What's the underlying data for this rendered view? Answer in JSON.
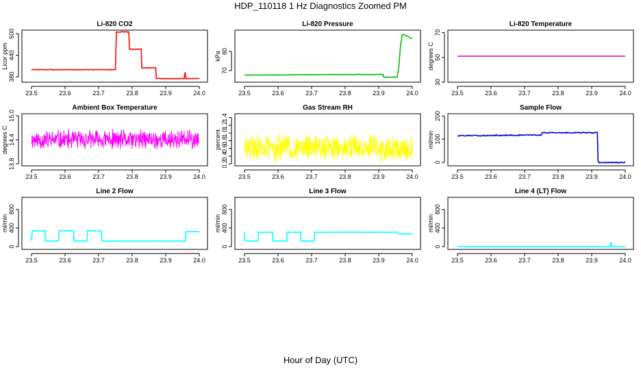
{
  "figure_title": "HDP_110118  1 Hz Diagnostics Zoomed PM",
  "x_axis_label": "Hour of Day (UTC)",
  "chart_data": [
    {
      "type": "line",
      "title": "Li-820 CO2",
      "ylabel": "Licor ppm",
      "color": "#ff0000",
      "xlim": [
        23.5,
        24.0
      ],
      "ylim": [
        365,
        510
      ],
      "x_ticks": [
        23.5,
        23.6,
        23.7,
        23.8,
        23.9,
        24.0
      ],
      "x_tick_labels": [
        "23.5",
        "23.6",
        "23.7",
        "23.8",
        "23.9",
        "24.0"
      ],
      "y_ticks": [
        380,
        440,
        500
      ],
      "y_tick_labels": [
        "380",
        "440",
        "500"
      ],
      "kind": "step",
      "noise": 0.8,
      "series": [
        [
          23.5,
          400
        ],
        [
          23.75,
          400
        ],
        [
          23.753,
          505
        ],
        [
          23.79,
          505
        ],
        [
          23.792,
          457
        ],
        [
          23.827,
          457
        ],
        [
          23.829,
          405
        ],
        [
          23.87,
          405
        ],
        [
          23.872,
          375
        ],
        [
          23.955,
          375
        ],
        [
          23.958,
          393
        ],
        [
          23.96,
          375
        ],
        [
          24.0,
          375
        ]
      ]
    },
    {
      "type": "line",
      "title": "Li-820 Pressure",
      "ylabel": "kPa",
      "color": "#00bb00",
      "xlim": [
        23.5,
        24.0
      ],
      "ylim": [
        64,
        91
      ],
      "x_ticks": [
        23.5,
        23.6,
        23.7,
        23.8,
        23.9,
        24.0
      ],
      "x_tick_labels": [
        "23.5",
        "23.6",
        "23.7",
        "23.8",
        "23.9",
        "24.0"
      ],
      "y_ticks": [
        70,
        80
      ],
      "y_tick_labels": [
        "70",
        "80"
      ],
      "kind": "step",
      "noise": 0.1,
      "series": [
        [
          23.5,
          67.7
        ],
        [
          23.75,
          67.9
        ],
        [
          23.752,
          68.0
        ],
        [
          23.913,
          68.0
        ],
        [
          23.915,
          66.6
        ],
        [
          23.955,
          66.6
        ],
        [
          23.96,
          72
        ],
        [
          23.965,
          83
        ],
        [
          23.97,
          88.5
        ],
        [
          23.975,
          88.8
        ],
        [
          24.0,
          86.4
        ]
      ]
    },
    {
      "type": "line",
      "title": "Li-820 Temperature",
      "ylabel": "degrees C",
      "color": "#cc00cc",
      "xlim": [
        23.5,
        24.0
      ],
      "ylim": [
        30,
        72
      ],
      "x_ticks": [
        23.5,
        23.6,
        23.7,
        23.8,
        23.9,
        24.0
      ],
      "x_tick_labels": [
        "23.5",
        "23.6",
        "23.7",
        "23.8",
        "23.9",
        "24.0"
      ],
      "y_ticks": [
        30,
        50,
        70
      ],
      "y_tick_labels": [
        "30",
        "50",
        "70"
      ],
      "kind": "step",
      "noise": 0,
      "series": [
        [
          23.5,
          51
        ],
        [
          24.0,
          51
        ]
      ]
    },
    {
      "type": "line",
      "title": "Ambient Box Temperature",
      "ylabel": "degrees C",
      "color": "#ff00ff",
      "xlim": [
        23.5,
        24.0
      ],
      "ylim": [
        13.75,
        15.05
      ],
      "x_ticks": [
        23.5,
        23.6,
        23.7,
        23.8,
        23.9,
        24.0
      ],
      "x_tick_labels": [
        "23.5",
        "23.6",
        "23.7",
        "23.8",
        "23.9",
        "24.0"
      ],
      "y_ticks": [
        13.8,
        14.4,
        15.0
      ],
      "y_tick_labels": [
        "13.8",
        "14.4",
        "15.0"
      ],
      "kind": "noise",
      "center": 14.4,
      "spread": 0.28,
      "seed": 11,
      "series": []
    },
    {
      "type": "line",
      "title": "Gas Stream RH",
      "ylabel": "percent",
      "color": "#ffff00",
      "xlim": [
        23.5,
        24.0
      ],
      "ylim": [
        0.15,
        1.5
      ],
      "x_ticks": [
        23.5,
        23.6,
        23.7,
        23.8,
        23.9,
        24.0
      ],
      "x_tick_labels": [
        "23.5",
        "23.6",
        "23.7",
        "23.8",
        "23.9",
        "24.0"
      ],
      "y_ticks": [
        0.2,
        0.4,
        0.6,
        0.8,
        1.0,
        1.2,
        1.4
      ],
      "y_tick_labels": [
        "0.2",
        "0.4",
        "0.6",
        "0.8",
        "1.0",
        "1.2",
        "1.4"
      ],
      "kind": "noise",
      "center": 0.62,
      "spread": 0.4,
      "seed": 29,
      "series": []
    },
    {
      "type": "line",
      "title": "Sample Flow",
      "ylabel": "ml/min",
      "color": "#0000cc",
      "xlim": [
        23.5,
        24.0
      ],
      "ylim": [
        -15,
        210
      ],
      "x_ticks": [
        23.5,
        23.6,
        23.7,
        23.8,
        23.9,
        24.0
      ],
      "x_tick_labels": [
        "23.5",
        "23.6",
        "23.7",
        "23.8",
        "23.9",
        "24.0"
      ],
      "y_ticks": [
        0,
        100,
        200
      ],
      "y_tick_labels": [
        "0",
        "100",
        "200"
      ],
      "kind": "step",
      "noise": 2,
      "series": [
        [
          23.5,
          115
        ],
        [
          23.75,
          118
        ],
        [
          23.752,
          128
        ],
        [
          23.917,
          128
        ],
        [
          23.919,
          5
        ],
        [
          23.922,
          -2
        ],
        [
          24.0,
          0
        ]
      ]
    },
    {
      "type": "line",
      "title": "Line 2 Flow",
      "ylabel": "ml/min",
      "color": "#00ffff",
      "xlim": [
        23.5,
        24.0
      ],
      "ylim": [
        -60,
        1060
      ],
      "x_ticks": [
        23.5,
        23.6,
        23.7,
        23.8,
        23.9,
        24.0
      ],
      "x_tick_labels": [
        "23.5",
        "23.6",
        "23.7",
        "23.8",
        "23.9",
        "24.0"
      ],
      "y_ticks": [
        0,
        400,
        800
      ],
      "y_tick_labels": [
        "0",
        "400",
        "800"
      ],
      "kind": "step",
      "noise": 3,
      "series": [
        [
          23.5,
          130
        ],
        [
          23.502,
          340
        ],
        [
          23.54,
          340
        ],
        [
          23.542,
          120
        ],
        [
          23.58,
          120
        ],
        [
          23.582,
          340
        ],
        [
          23.625,
          340
        ],
        [
          23.627,
          120
        ],
        [
          23.665,
          120
        ],
        [
          23.667,
          340
        ],
        [
          23.708,
          340
        ],
        [
          23.71,
          120
        ],
        [
          23.958,
          120
        ],
        [
          23.96,
          320
        ],
        [
          24.0,
          320
        ]
      ]
    },
    {
      "type": "line",
      "title": "Line 3 Flow",
      "ylabel": "ml/min",
      "color": "#00ffff",
      "xlim": [
        23.5,
        24.0
      ],
      "ylim": [
        -60,
        1060
      ],
      "x_ticks": [
        23.5,
        23.6,
        23.7,
        23.8,
        23.9,
        24.0
      ],
      "x_tick_labels": [
        "23.5",
        "23.6",
        "23.7",
        "23.8",
        "23.9",
        "24.0"
      ],
      "y_ticks": [
        0,
        400,
        800
      ],
      "y_tick_labels": [
        "0",
        "400",
        "800"
      ],
      "kind": "step",
      "noise": 3,
      "series": [
        [
          23.5,
          310
        ],
        [
          23.502,
          120
        ],
        [
          23.54,
          120
        ],
        [
          23.542,
          310
        ],
        [
          23.583,
          310
        ],
        [
          23.585,
          120
        ],
        [
          23.625,
          120
        ],
        [
          23.627,
          310
        ],
        [
          23.667,
          310
        ],
        [
          23.669,
          120
        ],
        [
          23.708,
          120
        ],
        [
          23.71,
          310
        ],
        [
          23.955,
          310
        ],
        [
          23.96,
          275
        ],
        [
          24.0,
          275
        ]
      ]
    },
    {
      "type": "line",
      "title": "Line 4 (LT) Flow",
      "ylabel": "ml/min",
      "color": "#00ffff",
      "xlim": [
        23.5,
        24.0
      ],
      "ylim": [
        -60,
        1060
      ],
      "x_ticks": [
        23.5,
        23.6,
        23.7,
        23.8,
        23.9,
        24.0
      ],
      "x_tick_labels": [
        "23.5",
        "23.6",
        "23.7",
        "23.8",
        "23.9",
        "24.0"
      ],
      "y_ticks": [
        0,
        400,
        800
      ],
      "y_tick_labels": [
        "0",
        "400",
        "800"
      ],
      "kind": "step",
      "noise": 0,
      "series": [
        [
          23.5,
          0
        ],
        [
          23.955,
          0
        ],
        [
          23.957,
          90
        ],
        [
          23.96,
          0
        ],
        [
          24.0,
          0
        ]
      ]
    }
  ]
}
